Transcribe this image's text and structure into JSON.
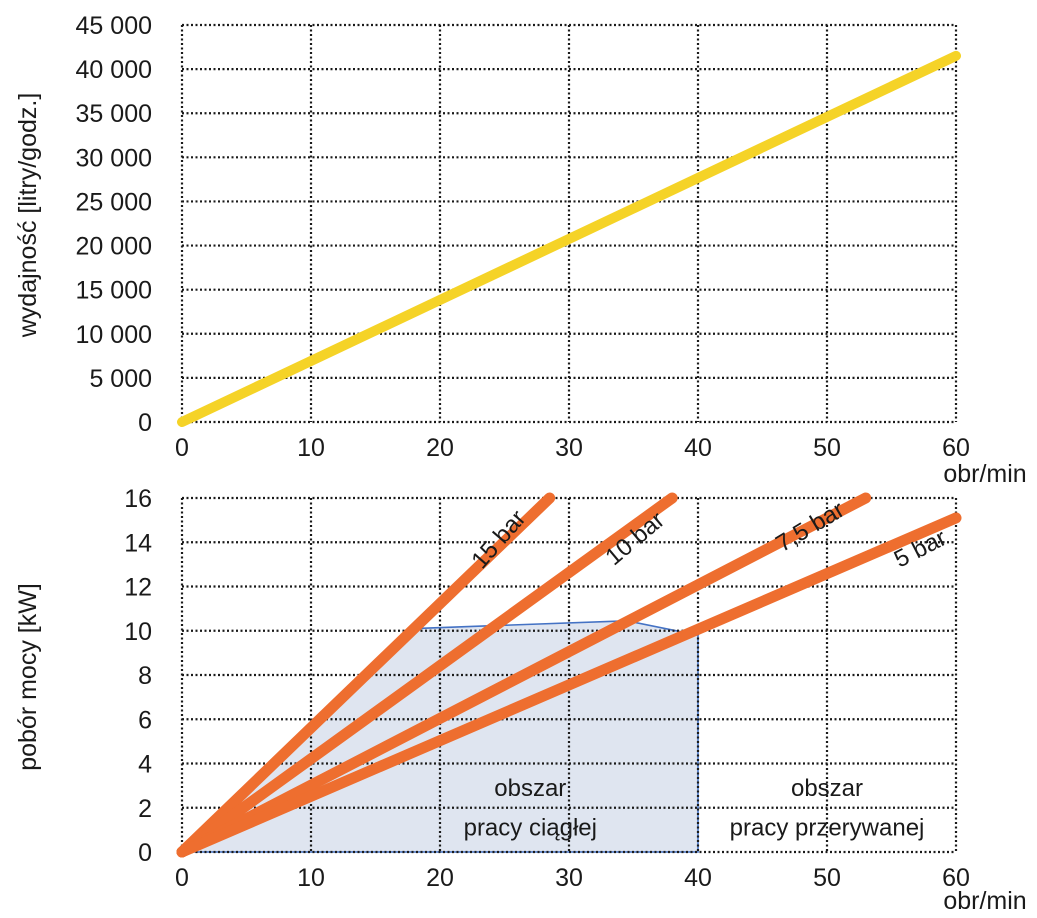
{
  "colors": {
    "yield_line": "#F5D327",
    "power_lines": "#EE6E2F",
    "region_fill": "#DFE5F0",
    "region_edge": "#4472C4",
    "grid": "#1a1a1a"
  },
  "chart_data": [
    {
      "type": "line",
      "xlabel": "obr/min",
      "ylabel": "wydajność [litry/godz.]",
      "xlim": [
        0,
        60
      ],
      "ylim": [
        0,
        45000
      ],
      "x_ticks": [
        0,
        10,
        20,
        30,
        40,
        50,
        60
      ],
      "x_tick_labels": [
        "0",
        "10",
        "20",
        "30",
        "40",
        "50",
        "60"
      ],
      "y_ticks": [
        0,
        5000,
        10000,
        15000,
        20000,
        25000,
        30000,
        35000,
        40000,
        45000
      ],
      "y_tick_labels": [
        "0",
        "5 000",
        "10 000",
        "15 000",
        "20 000",
        "25 000",
        "30 000",
        "35 000",
        "40 000",
        "45 000"
      ],
      "grid": true,
      "series": [
        {
          "x": [
            0,
            60
          ],
          "y": [
            0,
            41500
          ],
          "color": "#F5D327"
        }
      ]
    },
    {
      "type": "line",
      "xlabel": "obr/min",
      "ylabel": "pobór mocy [kW]",
      "xlim": [
        0,
        60
      ],
      "ylim": [
        0,
        16
      ],
      "x_ticks": [
        0,
        10,
        20,
        30,
        40,
        50,
        60
      ],
      "x_tick_labels": [
        "0",
        "10",
        "20",
        "30",
        "40",
        "50",
        "60"
      ],
      "y_ticks": [
        0,
        2,
        4,
        6,
        8,
        10,
        12,
        14,
        16
      ],
      "y_tick_labels": [
        "0",
        "2",
        "4",
        "6",
        "8",
        "10",
        "12",
        "14",
        "16"
      ],
      "grid": true,
      "series": [
        {
          "name": "15 bar",
          "x": [
            0,
            28.5
          ],
          "y": [
            0,
            16
          ]
        },
        {
          "name": "10 bar",
          "x": [
            0,
            38
          ],
          "y": [
            0,
            16
          ]
        },
        {
          "name": "7,5 bar",
          "x": [
            0,
            53
          ],
          "y": [
            0,
            16
          ]
        },
        {
          "name": "5 bar",
          "x": [
            0,
            60
          ],
          "y": [
            0,
            15.1
          ]
        }
      ],
      "series_label_positions": [
        {
          "x": 25,
          "y": 13.9,
          "angle": -49
        },
        {
          "x": 35.5,
          "y": 13.9,
          "angle": -40
        },
        {
          "x": 49,
          "y": 14.4,
          "angle": -31
        },
        {
          "x": 57.5,
          "y": 13.4,
          "angle": -27
        }
      ],
      "region": {
        "x": [
          0,
          18,
          34.5,
          40,
          40
        ],
        "y": [
          0,
          10.1,
          10.45,
          9.8,
          0
        ]
      },
      "annotations": [
        {
          "text": "obszar",
          "x": 27,
          "y": 2.9
        },
        {
          "text": "pracy ciągłej",
          "x": 27,
          "y": 1.1
        },
        {
          "text": "obszar",
          "x": 50,
          "y": 2.9
        },
        {
          "text": "pracy przerywanej",
          "x": 50,
          "y": 1.1
        }
      ]
    }
  ]
}
